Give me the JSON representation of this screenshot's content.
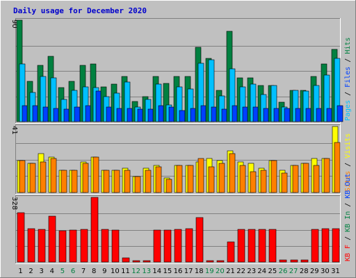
{
  "chart_data": {
    "title": "Daily usage for December 2020",
    "type": "bar",
    "days": [
      "1",
      "2",
      "3",
      "4",
      "5",
      "6",
      "7",
      "8",
      "9",
      "10",
      "11",
      "12",
      "13",
      "14",
      "15",
      "16",
      "17",
      "18",
      "19",
      "20",
      "21",
      "22",
      "23",
      "24",
      "25",
      "26",
      "27",
      "28",
      "29",
      "30",
      "31"
    ],
    "weekend_days": [
      "5",
      "6",
      "12",
      "13",
      "19",
      "20",
      "26",
      "27"
    ],
    "colors": {
      "hits": "#008040",
      "files": "#00c0ff",
      "pages": "#0040ff",
      "visits": "#ffff00",
      "sites": "#ff8000",
      "kb": "#ff0000",
      "kb_in": "#008040",
      "kb_out": "#0040ff",
      "weekday_label": "#000000",
      "weekend_label": "#008040"
    },
    "panels": [
      {
        "id": "hits-files-pages",
        "ymax_label": "90",
        "ymax": 90,
        "side_label": [
          {
            "text": "Pages",
            "color": "#00c0ff"
          },
          {
            "text": " / ",
            "color": "#000000"
          },
          {
            "text": "Files",
            "color": "#0040ff"
          },
          {
            "text": " / ",
            "color": "#000000"
          },
          {
            "text": "Hits",
            "color": "#008040"
          }
        ],
        "series": [
          {
            "name": "Hits",
            "color": "#008040",
            "values": [
              90,
              36,
              50,
              58,
              30,
              36,
              50,
              51,
              31,
              33,
              40,
              18,
              22,
              40,
              34,
              40,
              40,
              66,
              56,
              28,
              80,
              39,
              39,
              32,
              32,
              17,
              28,
              28,
              40,
              51,
              64
            ]
          },
          {
            "name": "Files",
            "color": "#00c0ff",
            "values": [
              51,
              26,
              40,
              39,
              20,
              28,
              31,
              30,
              22,
              25,
              35,
              13,
              20,
              33,
              15,
              31,
              29,
              52,
              55,
              23,
              47,
              31,
              33,
              24,
              32,
              13,
              28,
              27,
              32,
              41,
              56
            ]
          },
          {
            "name": "Pages",
            "color": "#0040ff",
            "values": [
              14,
              14,
              13,
              12,
              11,
              13,
              14,
              27,
              13,
              12,
              12,
              11,
              11,
              14,
              13,
              10,
              12,
              14,
              13,
              11,
              14,
              13,
              13,
              12,
              12,
              12,
              12,
              12,
              12,
              12,
              14
            ]
          }
        ]
      },
      {
        "id": "visits-sites",
        "ymax_label": "41",
        "ymax": 41,
        "side_label": [
          {
            "text": "Sites",
            "color": "#ff8000"
          },
          {
            "text": " / ",
            "color": "#000000"
          },
          {
            "text": "Visits",
            "color": "#ffff00"
          }
        ],
        "series": [
          {
            "name": "Visits",
            "color": "#ffff00",
            "values": [
              20,
              18,
              24,
              22,
              14,
              14,
              19,
              22,
              14,
              14,
              15,
              10,
              15,
              17,
              9,
              17,
              17,
              19,
              21,
              20,
              26,
              19,
              18,
              15,
              20,
              14,
              17,
              18,
              21,
              21,
              41
            ]
          },
          {
            "name": "Sites",
            "color": "#ff8000",
            "values": [
              20,
              18,
              19,
              21,
              14,
              14,
              18,
              22,
              14,
              14,
              14,
              10,
              14,
              16,
              8,
              17,
              17,
              21,
              16,
              18,
              24,
              17,
              13,
              14,
              20,
              12,
              17,
              18,
              17,
              21,
              31
            ]
          }
        ]
      },
      {
        "id": "kb",
        "ymax_label": "328",
        "ymax": 328,
        "side_label": [
          {
            "text": "KB F",
            "color": "#ff0000"
          },
          {
            "text": " / ",
            "color": "#000000"
          },
          {
            "text": "KB In",
            "color": "#008040"
          },
          {
            "text": " / ",
            "color": "#000000"
          },
          {
            "text": "KB Out",
            "color": "#0040ff"
          }
        ],
        "series": [
          {
            "name": "KB F",
            "color": "#ff0000",
            "values": [
              252,
              170,
              166,
              232,
              160,
              163,
              164,
              328,
              164,
              161,
              20,
              8,
              8,
              163,
              162,
              166,
              168,
              225,
              8,
              8,
              104,
              165,
              165,
              165,
              165,
              10,
              10,
              10,
              165,
              169,
              168
            ]
          }
        ]
      }
    ]
  }
}
